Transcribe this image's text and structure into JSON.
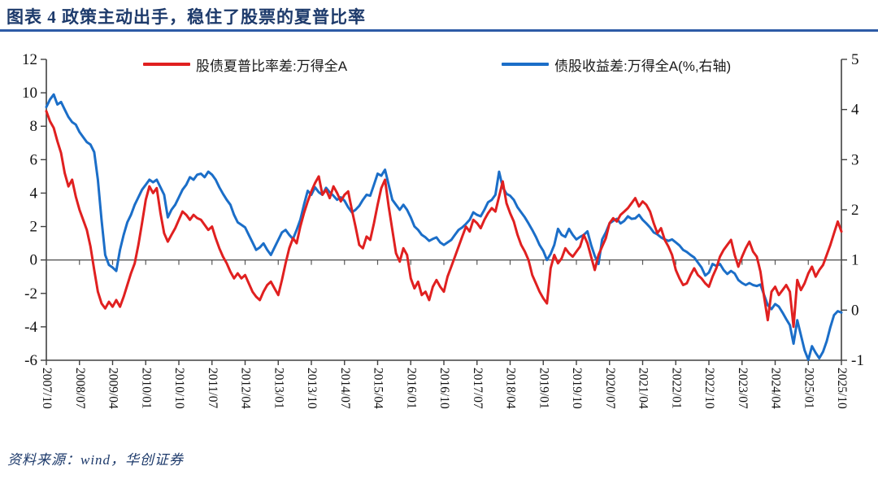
{
  "title": "图表 4  政策主动出手，稳住了股票的夏普比率",
  "source": "资料来源：wind，华创证券",
  "colors": {
    "title_navy": "#1d3a6b",
    "title_rule_blue": "#2d5ba6",
    "series_red": "#e02020",
    "series_blue": "#1b6ec8",
    "axis_line": "#404040",
    "zero_line": "#595959",
    "tick_text": "#111111"
  },
  "chart_data": {
    "type": "line",
    "title": "",
    "xlabel": "",
    "ylabel_left": "",
    "ylabel_right": "",
    "x_start": "2007/10",
    "x_end": "2025/10",
    "x_interval_months": 1,
    "x_tick_labels": [
      "2007/10",
      "2008/07",
      "2009/04",
      "2010/01",
      "2010/10",
      "2011/07",
      "2012/04",
      "2013/01",
      "2013/10",
      "2014/07",
      "2015/04",
      "2016/01",
      "2016/10",
      "2017/07",
      "2018/04",
      "2019/01",
      "2019/10",
      "2020/07",
      "2021/04",
      "2022/01",
      "2022/10",
      "2023/07",
      "2024/04",
      "2025/01",
      "2025/10"
    ],
    "x_tick_step_months": 9,
    "left_axis": {
      "min": -6,
      "max": 12,
      "ticks": [
        12,
        10,
        8,
        6,
        4,
        2,
        0,
        -2,
        -4,
        -6
      ]
    },
    "right_axis": {
      "min": -1,
      "max": 5,
      "ticks": [
        5,
        4,
        3,
        2,
        1,
        0,
        -1
      ]
    },
    "zero_line_left_value": 0,
    "grid": false,
    "legend_position": "top-inside",
    "series": [
      {
        "name": "股债夏普比率差:万得全A",
        "axis": "left",
        "color": "#e02020",
        "values": [
          8.9,
          8.3,
          7.9,
          7.1,
          6.4,
          5.2,
          4.4,
          4.8,
          3.8,
          3.0,
          2.4,
          1.8,
          0.8,
          -0.6,
          -1.9,
          -2.6,
          -2.9,
          -2.5,
          -2.8,
          -2.4,
          -2.8,
          -2.2,
          -1.5,
          -0.8,
          -0.2,
          0.9,
          2.2,
          3.6,
          4.4,
          4.0,
          4.3,
          2.8,
          1.6,
          1.1,
          1.5,
          1.9,
          2.4,
          2.9,
          2.7,
          2.4,
          2.7,
          2.5,
          2.4,
          2.1,
          1.8,
          2.0,
          1.3,
          0.7,
          0.2,
          -0.2,
          -0.7,
          -1.1,
          -0.8,
          -1.1,
          -0.9,
          -1.4,
          -1.9,
          -2.2,
          -2.4,
          -1.9,
          -1.5,
          -1.3,
          -1.7,
          -2.1,
          -1.2,
          -0.2,
          0.7,
          1.3,
          1.0,
          2.0,
          2.8,
          3.5,
          4.1,
          4.6,
          5.0,
          3.9,
          4.2,
          3.7,
          4.4,
          4.0,
          3.5,
          3.9,
          4.1,
          3.0,
          2.0,
          0.9,
          0.7,
          1.4,
          1.2,
          2.2,
          3.3,
          4.3,
          4.8,
          3.2,
          1.8,
          0.4,
          -0.1,
          0.7,
          0.3,
          -1.1,
          -1.7,
          -1.3,
          -2.1,
          -1.9,
          -2.4,
          -1.6,
          -1.2,
          -1.6,
          -1.9,
          -1.0,
          -0.4,
          0.2,
          0.8,
          1.4,
          2.0,
          1.7,
          2.4,
          2.2,
          1.9,
          2.4,
          2.8,
          3.1,
          2.9,
          3.8,
          4.7,
          3.4,
          2.8,
          2.3,
          1.5,
          0.9,
          0.5,
          0.0,
          -0.9,
          -1.4,
          -1.9,
          -2.3,
          -2.6,
          -0.5,
          0.3,
          -0.2,
          0.1,
          0.7,
          0.4,
          0.2,
          0.5,
          0.8,
          1.5,
          1.0,
          0.2,
          -0.6,
          0.3,
          0.8,
          1.3,
          2.2,
          2.5,
          2.3,
          2.7,
          2.9,
          3.1,
          3.4,
          3.7,
          3.2,
          3.5,
          3.3,
          2.9,
          2.2,
          1.6,
          1.9,
          1.2,
          0.8,
          0.3,
          -0.6,
          -1.1,
          -1.5,
          -1.4,
          -0.9,
          -0.5,
          -0.9,
          -1.1,
          -1.4,
          -1.6,
          -1.0,
          -0.5,
          0.2,
          0.6,
          0.9,
          1.2,
          0.3,
          -0.4,
          0.2,
          0.7,
          1.1,
          0.5,
          0.2,
          -0.7,
          -2.2,
          -3.6,
          -1.9,
          -1.6,
          -2.1,
          -1.8,
          -1.5,
          -1.9,
          -4.0,
          -1.2,
          -1.8,
          -1.4,
          -0.8,
          -0.4,
          -1.0,
          -0.6,
          -0.3,
          0.3,
          0.9,
          1.6,
          2.3,
          1.7
        ]
      },
      {
        "name": "债股收益差:万得全A(%,右轴)",
        "axis": "right",
        "color": "#1b6ec8",
        "values": [
          4.05,
          4.2,
          4.3,
          4.1,
          4.15,
          4.0,
          3.85,
          3.75,
          3.7,
          3.55,
          3.45,
          3.35,
          3.3,
          3.15,
          2.6,
          1.8,
          1.1,
          0.9,
          0.85,
          0.78,
          1.2,
          1.5,
          1.75,
          1.9,
          2.1,
          2.25,
          2.4,
          2.5,
          2.6,
          2.55,
          2.6,
          2.45,
          2.3,
          1.85,
          2.0,
          2.1,
          2.25,
          2.4,
          2.5,
          2.65,
          2.6,
          2.7,
          2.72,
          2.65,
          2.76,
          2.7,
          2.6,
          2.45,
          2.32,
          2.2,
          2.1,
          1.9,
          1.75,
          1.7,
          1.65,
          1.5,
          1.35,
          1.2,
          1.25,
          1.33,
          1.2,
          1.1,
          1.25,
          1.4,
          1.55,
          1.6,
          1.5,
          1.42,
          1.6,
          1.8,
          2.1,
          2.38,
          2.3,
          2.45,
          2.35,
          2.3,
          2.44,
          2.35,
          2.28,
          2.2,
          2.25,
          2.18,
          2.05,
          1.95,
          2.0,
          2.08,
          2.2,
          2.3,
          2.28,
          2.5,
          2.72,
          2.68,
          2.8,
          2.5,
          2.2,
          2.1,
          2.0,
          2.1,
          2.0,
          1.85,
          1.67,
          1.6,
          1.5,
          1.45,
          1.38,
          1.42,
          1.45,
          1.35,
          1.3,
          1.35,
          1.4,
          1.5,
          1.6,
          1.65,
          1.72,
          1.8,
          1.95,
          1.9,
          1.87,
          2.0,
          2.15,
          2.2,
          2.3,
          2.76,
          2.45,
          2.32,
          2.28,
          2.2,
          2.05,
          1.95,
          1.85,
          1.73,
          1.6,
          1.46,
          1.3,
          1.18,
          1.0,
          1.12,
          1.3,
          1.62,
          1.5,
          1.46,
          1.62,
          1.5,
          1.41,
          1.46,
          1.5,
          1.57,
          1.3,
          1.08,
          0.92,
          1.41,
          1.55,
          1.73,
          1.78,
          1.82,
          1.73,
          1.78,
          1.87,
          1.82,
          1.83,
          1.9,
          1.8,
          1.73,
          1.65,
          1.55,
          1.51,
          1.45,
          1.41,
          1.38,
          1.41,
          1.35,
          1.29,
          1.2,
          1.16,
          1.1,
          1.05,
          0.95,
          0.85,
          0.69,
          0.75,
          0.92,
          0.88,
          0.92,
          0.8,
          0.72,
          0.78,
          0.73,
          0.6,
          0.54,
          0.5,
          0.54,
          0.5,
          0.48,
          0.51,
          0.3,
          0.1,
          0.02,
          0.12,
          0.07,
          -0.05,
          -0.18,
          -0.3,
          -0.67,
          -0.2,
          -0.5,
          -0.8,
          -0.99,
          -0.72,
          -0.85,
          -0.96,
          -0.83,
          -0.62,
          -0.34,
          -0.1,
          -0.02,
          -0.05
        ]
      }
    ]
  }
}
